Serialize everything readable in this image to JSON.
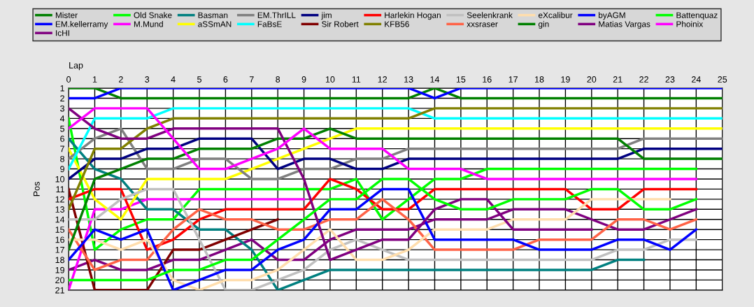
{
  "chart_data": {
    "type": "line",
    "xlabel": "Lap",
    "ylabel": "Pos",
    "x": [
      0,
      1,
      2,
      3,
      4,
      5,
      6,
      7,
      8,
      9,
      10,
      11,
      12,
      13,
      14,
      15,
      16,
      17,
      18,
      19,
      20,
      21,
      22,
      23,
      24,
      25
    ],
    "xlim": [
      0,
      25
    ],
    "xticks": [
      0,
      1,
      2,
      3,
      4,
      5,
      6,
      7,
      8,
      9,
      10,
      11,
      12,
      13,
      14,
      15,
      16,
      17,
      18,
      19,
      20,
      21,
      22,
      23,
      24,
      25
    ],
    "ylim": [
      21,
      1
    ],
    "yticks": [
      1,
      2,
      3,
      4,
      5,
      6,
      7,
      8,
      9,
      10,
      11,
      12,
      13,
      14,
      15,
      16,
      17,
      18,
      19,
      20,
      21
    ],
    "grid": true,
    "legend": "top",
    "marker": "none",
    "line_style": "solid",
    "series": [
      {
        "name": "Mister",
        "color": "#008000",
        "values": [
          1,
          1,
          2,
          2,
          2,
          2,
          2,
          2,
          2,
          2,
          2,
          2,
          2,
          2,
          1,
          2,
          2,
          2,
          2,
          2,
          2,
          2,
          2,
          2,
          2,
          2
        ]
      },
      {
        "name": "EM.kellerramy",
        "color": "#0000ff",
        "values": [
          2,
          2,
          1,
          1,
          1,
          1,
          1,
          1,
          1,
          1,
          1,
          1,
          1,
          1,
          2,
          1,
          1,
          1,
          1,
          1,
          1,
          1,
          1,
          1,
          1,
          1
        ]
      },
      {
        "name": "IcHI",
        "color": "#800080",
        "values": [
          19,
          18,
          19,
          19,
          18,
          18,
          17,
          16,
          18,
          18,
          16,
          15,
          15,
          15,
          14,
          14,
          14,
          13,
          13,
          13,
          14,
          15,
          15,
          14,
          13,
          null
        ]
      },
      {
        "name": "Old Snake",
        "color": "#00ff00",
        "values": [
          4,
          17,
          15,
          14,
          14,
          11,
          11,
          11,
          11,
          11,
          11,
          10,
          14,
          12,
          10,
          10,
          9,
          9,
          9,
          9,
          9,
          9,
          9,
          9,
          9,
          null
        ]
      },
      {
        "name": "M.Mund",
        "color": "#ff00ff",
        "values": [
          21,
          13,
          13,
          12,
          12,
          12,
          12,
          12,
          12,
          12,
          null,
          null,
          null,
          null,
          null,
          null,
          null,
          null,
          null,
          null,
          null,
          null,
          null,
          null,
          null,
          null
        ]
      },
      {
        "name": "Basman",
        "color": "#008080",
        "values": [
          6,
          9,
          10,
          13,
          13,
          15,
          15,
          17,
          21,
          20,
          19,
          19,
          19,
          19,
          19,
          19,
          19,
          19,
          19,
          19,
          19,
          18,
          18,
          null,
          null,
          null
        ]
      },
      {
        "name": "aSSmAN",
        "color": "#ffff00",
        "values": [
          7,
          12,
          14,
          10,
          10,
          10,
          10,
          9,
          8,
          7,
          6,
          5,
          5,
          5,
          5,
          5,
          5,
          5,
          5,
          5,
          5,
          5,
          5,
          5,
          5,
          5
        ]
      },
      {
        "name": "EM.ThrILL",
        "color": "#808080",
        "values": [
          8,
          6,
          5,
          9,
          9,
          8,
          8,
          10,
          10,
          9,
          9,
          8,
          8,
          7,
          7,
          7,
          7,
          7,
          7,
          7,
          7,
          7,
          6,
          6,
          6,
          6
        ]
      },
      {
        "name": "FaBsE",
        "color": "#00ffff",
        "values": [
          9,
          4,
          4,
          4,
          3,
          3,
          3,
          3,
          3,
          3,
          3,
          3,
          3,
          3,
          4,
          4,
          4,
          4,
          4,
          4,
          4,
          4,
          4,
          4,
          4,
          4
        ]
      },
      {
        "name": "jim",
        "color": "#000080",
        "values": [
          10,
          8,
          8,
          7,
          7,
          6,
          6,
          6,
          9,
          8,
          8,
          9,
          9,
          8,
          8,
          8,
          8,
          8,
          8,
          8,
          8,
          8,
          7,
          7,
          7,
          7
        ]
      },
      {
        "name": "Sir Robert",
        "color": "#800000",
        "values": [
          11,
          21,
          21,
          21,
          17,
          17,
          16,
          15,
          14,
          null,
          null,
          null,
          null,
          null,
          null,
          null,
          null,
          null,
          null,
          null,
          null,
          null,
          null,
          null,
          null,
          null
        ]
      },
      {
        "name": "Harlekin Hogan",
        "color": "#ff0000",
        "values": [
          12,
          11,
          11,
          17,
          16,
          14,
          13,
          13,
          13,
          13,
          10,
          11,
          13,
          13,
          11,
          11,
          11,
          11,
          11,
          11,
          13,
          13,
          11,
          11,
          11,
          null
        ]
      },
      {
        "name": "KFB56",
        "color": "#808000",
        "values": [
          13,
          7,
          7,
          5,
          4,
          4,
          4,
          4,
          4,
          4,
          4,
          4,
          4,
          4,
          3,
          3,
          3,
          3,
          3,
          3,
          3,
          3,
          3,
          3,
          3,
          3
        ]
      },
      {
        "name": "Seelenkrank",
        "color": "#c0c0c0",
        "values": [
          14,
          14,
          12,
          11,
          11,
          16,
          21,
          21,
          20,
          19,
          17,
          16,
          17,
          18,
          18,
          18,
          18,
          18,
          18,
          18,
          18,
          17,
          17,
          16,
          16,
          null
        ]
      },
      {
        "name": "xxsraser",
        "color": "#ff6347",
        "values": [
          15,
          19,
          18,
          18,
          15,
          13,
          14,
          14,
          15,
          15,
          14,
          14,
          12,
          14,
          17,
          17,
          17,
          17,
          16,
          16,
          16,
          14,
          14,
          15,
          14,
          null
        ]
      },
      {
        "name": "eXcalibur",
        "color": "#ffdead",
        "values": [
          16,
          16,
          17,
          16,
          20,
          21,
          20,
          20,
          19,
          17,
          15,
          18,
          18,
          17,
          15,
          15,
          15,
          14,
          14,
          14,
          12,
          12,
          12,
          12,
          null,
          null
        ]
      },
      {
        "name": "gin",
        "color": "#008000",
        "values": [
          17,
          10,
          9,
          8,
          8,
          7,
          7,
          7,
          6,
          6,
          5,
          6,
          6,
          6,
          6,
          6,
          6,
          6,
          6,
          6,
          6,
          6,
          8,
          8,
          8,
          8
        ]
      },
      {
        "name": "byAGM",
        "color": "#0000ff",
        "values": [
          18,
          15,
          16,
          15,
          21,
          20,
          19,
          19,
          17,
          16,
          13,
          13,
          11,
          11,
          16,
          16,
          16,
          16,
          17,
          17,
          17,
          16,
          16,
          17,
          15,
          null
        ]
      },
      {
        "name": "Matias Vargas",
        "color": "#800080",
        "values": [
          3,
          5,
          6,
          6,
          5,
          5,
          5,
          5,
          5,
          10,
          18,
          17,
          16,
          16,
          13,
          12,
          12,
          15,
          15,
          15,
          15,
          null,
          null,
          null,
          null,
          null
        ]
      },
      {
        "name": "Battenquaz",
        "color": "#00ff00",
        "values": [
          20,
          20,
          20,
          20,
          19,
          19,
          18,
          18,
          16,
          14,
          12,
          12,
          10,
          10,
          12,
          13,
          13,
          12,
          12,
          12,
          11,
          11,
          13,
          13,
          12,
          null
        ]
      },
      {
        "name": "Phoinix",
        "color": "#ff00ff",
        "values": [
          5,
          3,
          3,
          3,
          6,
          9,
          9,
          8,
          7,
          5,
          7,
          7,
          7,
          9,
          9,
          9,
          10,
          10,
          10,
          10,
          10,
          10,
          10,
          10,
          10,
          null
        ]
      }
    ]
  }
}
